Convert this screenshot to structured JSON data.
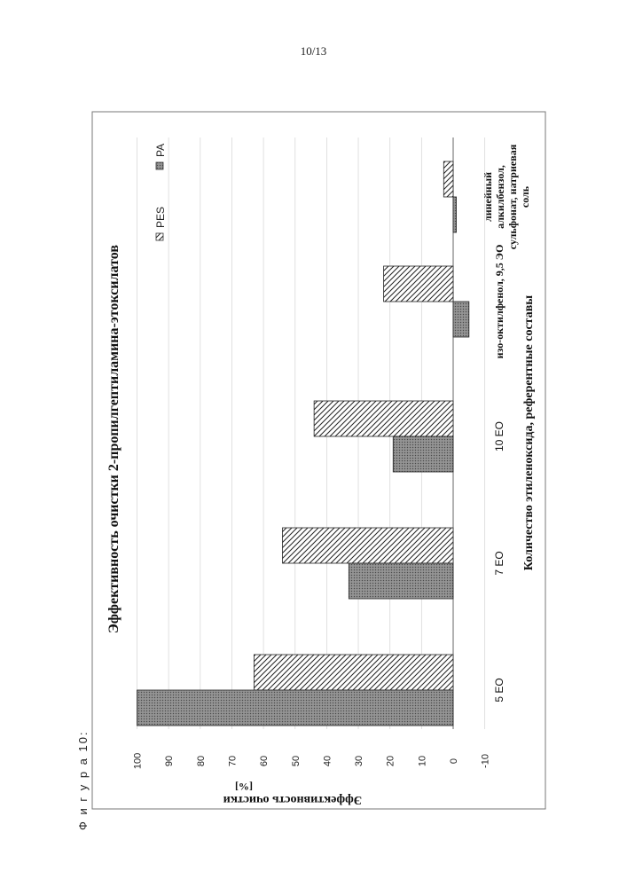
{
  "page": {
    "number": "10/13",
    "figure_label": "Ф и г у р а  10:"
  },
  "chart_data": {
    "type": "bar",
    "orientation": "horizontal",
    "title": "Эффективность очистки 2-пропилгептиламина-этоксилатов",
    "ylabel": "Эффективность очистки",
    "ylabel_unit": "[%]",
    "xlabel": "Количество этиленоксида, референтные составы",
    "categories": [
      "5 EO",
      "7 EO",
      "10 EO",
      "изо-октилфенол, 9,5 ЭО",
      "линейный алкилбензол, сульфонат, натриевая соль"
    ],
    "series": [
      {
        "name": "PES",
        "values": [
          63,
          54,
          44,
          22,
          3
        ]
      },
      {
        "name": "PA",
        "values": [
          100,
          33,
          19,
          -5,
          -1
        ]
      }
    ],
    "ylim": [
      -10,
      100
    ],
    "ticks": [
      -10,
      0,
      10,
      20,
      30,
      40,
      50,
      60,
      70,
      80,
      90,
      100
    ],
    "grid": true,
    "legend_position": "top-right"
  }
}
